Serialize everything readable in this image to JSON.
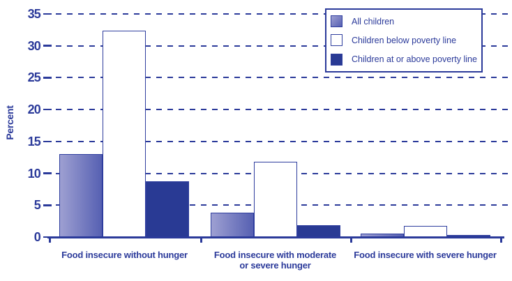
{
  "chart_data": {
    "type": "bar",
    "title": "",
    "xlabel": "",
    "ylabel": "Percent",
    "ylim": [
      0,
      35
    ],
    "y_tick_labels": [
      0,
      5,
      10,
      15,
      20,
      25,
      30,
      35
    ],
    "grid": "horizontal dashed",
    "legend_position": "top-right inset box",
    "categories": [
      "Food insecure without hunger",
      "Food insecure with moderate\nor severe hunger",
      "Food insecure with severe hunger"
    ],
    "series": [
      {
        "name": "All children",
        "values": [
          13,
          3.8,
          0.5
        ],
        "fill": "gradient-horizontal",
        "gradient": [
          "#9EA0D2",
          "#5660B2"
        ]
      },
      {
        "name": "Children below poverty line",
        "values": [
          32.4,
          11.8,
          1.7
        ],
        "fill": "#FFFFFF"
      },
      {
        "name": "Children at or above poverty line",
        "values": [
          8.7,
          1.9,
          0.3
        ],
        "fill": "#293A94"
      }
    ],
    "accent_color": "#2B3A9A"
  }
}
